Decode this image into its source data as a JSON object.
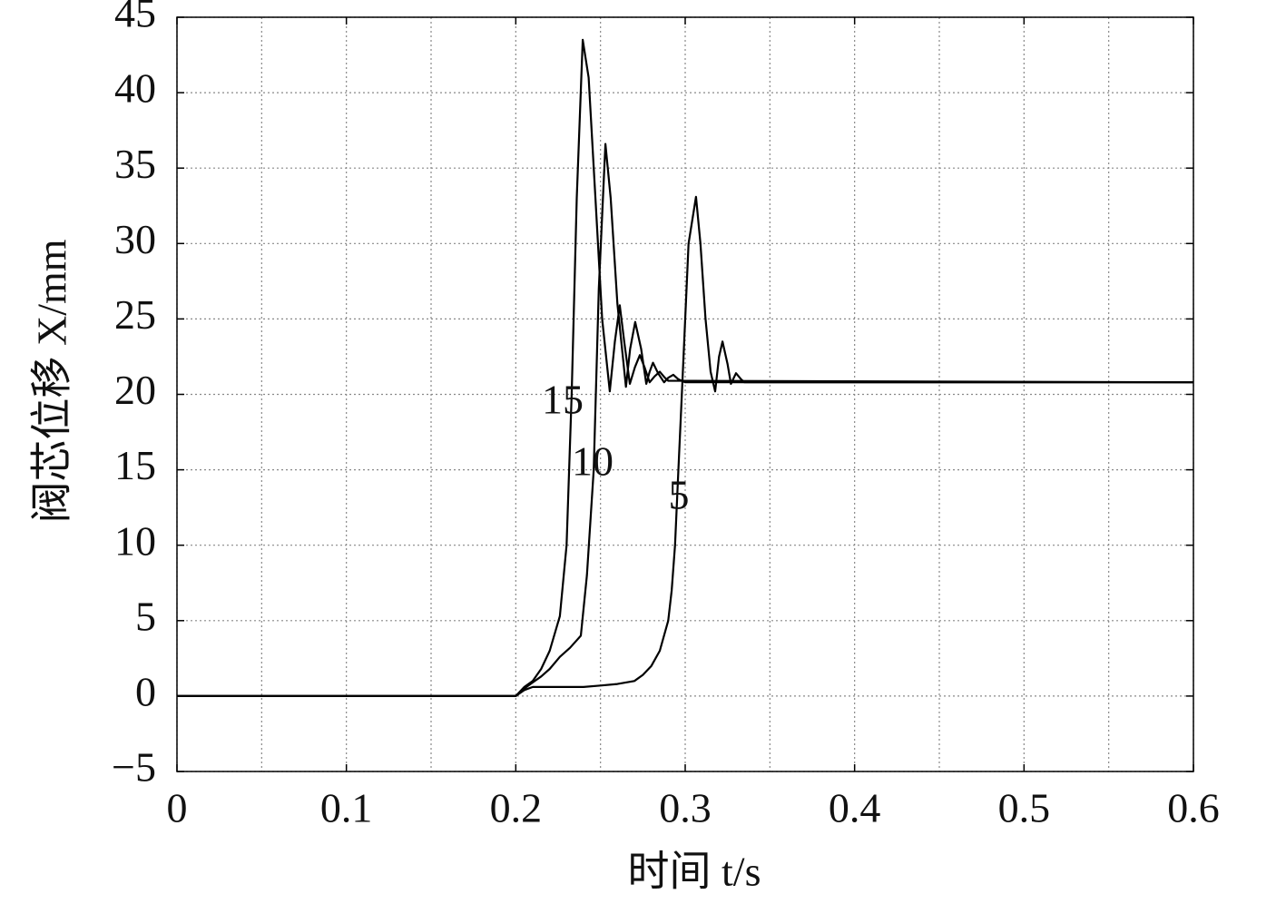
{
  "chart_data": {
    "type": "line",
    "xlabel": "时间 t/s",
    "ylabel": "阀芯位移 X/mm",
    "xlim": [
      0,
      0.6
    ],
    "ylim": [
      -5,
      45
    ],
    "xticks": [
      0,
      0.1,
      0.2,
      0.3,
      0.4,
      0.5,
      0.6
    ],
    "xminorgrid": [
      0.05,
      0.15,
      0.25,
      0.35,
      0.45,
      0.55
    ],
    "yticks": [
      {
        "value": -5,
        "label": "−5"
      },
      0,
      5,
      10,
      15,
      20,
      25,
      30,
      35,
      40,
      45
    ],
    "grid": true,
    "series": [
      {
        "name": "15",
        "color": "#000000",
        "x": [
          0,
          0.2,
          0.205,
          0.21,
          0.215,
          0.22,
          0.226,
          0.23,
          0.233,
          0.236,
          0.2395,
          0.243,
          0.247,
          0.251,
          0.2555,
          0.2585,
          0.2614,
          0.264,
          0.2673,
          0.2703,
          0.2732,
          0.276,
          0.279,
          0.282,
          0.285,
          0.288,
          0.29,
          0.6
        ],
        "values": [
          0,
          0,
          0.6,
          1.0,
          1.8,
          3.0,
          5.3,
          10,
          20,
          33,
          43.5,
          41,
          33,
          25,
          20.2,
          23.5,
          25.9,
          23.5,
          20.7,
          21.8,
          22.6,
          21.8,
          20.8,
          21.2,
          21.5,
          21.1,
          20.9,
          20.8
        ]
      },
      {
        "name": "10",
        "color": "#000000",
        "x": [
          0,
          0.2,
          0.205,
          0.21,
          0.215,
          0.22,
          0.226,
          0.232,
          0.2384,
          0.242,
          0.246,
          0.249,
          0.2529,
          0.256,
          0.26,
          0.265,
          0.2675,
          0.2705,
          0.274,
          0.277,
          0.279,
          0.281,
          0.284,
          0.2875,
          0.29,
          0.293,
          0.296,
          0.3,
          0.6
        ],
        "values": [
          0,
          0,
          0.5,
          0.9,
          1.3,
          1.8,
          2.6,
          3.2,
          4,
          8,
          15,
          27,
          36.6,
          33,
          26,
          20.5,
          23,
          24.8,
          23,
          20.7,
          21.5,
          22.1,
          21.4,
          20.8,
          21.1,
          21.3,
          21.0,
          20.8,
          20.8
        ]
      },
      {
        "name": "5",
        "color": "#000000",
        "x": [
          0,
          0.2,
          0.205,
          0.21,
          0.22,
          0.23,
          0.24,
          0.25,
          0.26,
          0.27,
          0.275,
          0.28,
          0.285,
          0.29,
          0.292,
          0.294,
          0.296,
          0.298,
          0.302,
          0.3064,
          0.309,
          0.312,
          0.315,
          0.3177,
          0.32,
          0.322,
          0.325,
          0.327,
          0.33,
          0.333,
          0.335,
          0.6
        ],
        "values": [
          0,
          0,
          0.4,
          0.6,
          0.6,
          0.6,
          0.6,
          0.7,
          0.8,
          1.0,
          1.4,
          2.0,
          3.0,
          5.0,
          7,
          10,
          15,
          20,
          30,
          33.1,
          30,
          25,
          21.5,
          20.2,
          22.5,
          23.5,
          22,
          20.7,
          21.4,
          21.0,
          20.8,
          20.8
        ]
      }
    ]
  }
}
